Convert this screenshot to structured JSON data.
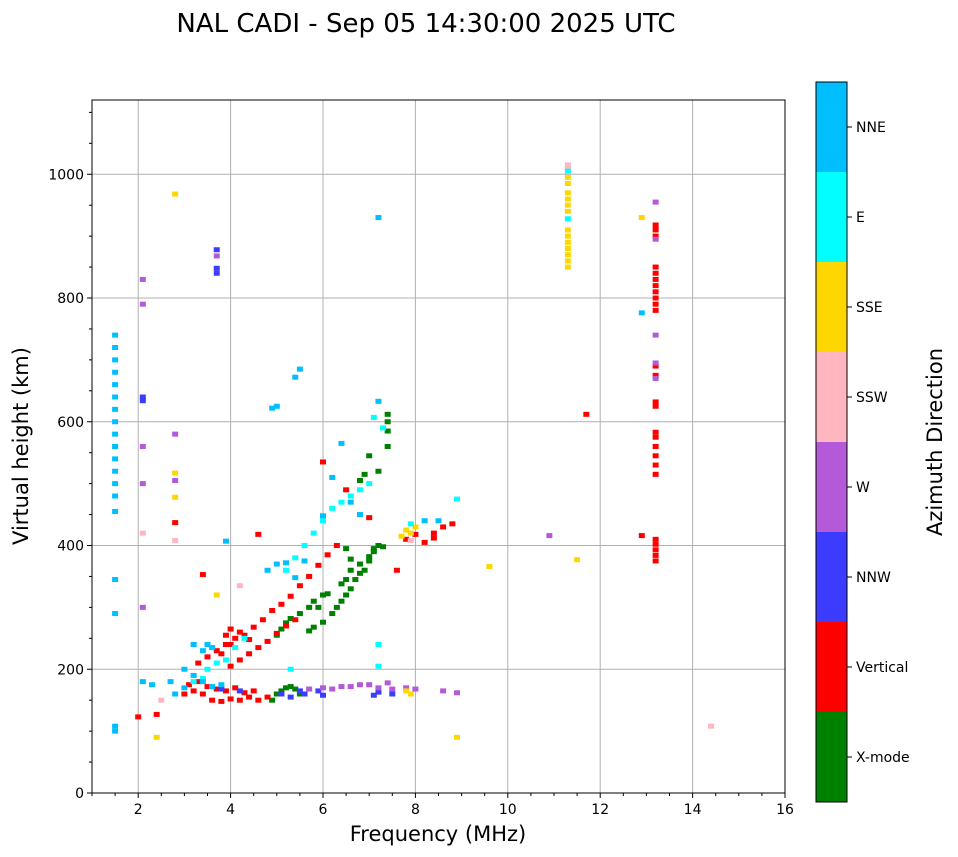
{
  "chart_data": {
    "type": "scatter",
    "title": "NAL CADI - Sep 05 14:30:00 2025 UTC",
    "xlabel": "Frequency (MHz)",
    "ylabel": "Virtual height (km)",
    "xlim": [
      1,
      16
    ],
    "ylim": [
      0,
      1120
    ],
    "xticks": [
      2,
      4,
      6,
      8,
      10,
      12,
      14,
      16
    ],
    "yticks": [
      0,
      200,
      400,
      600,
      800,
      1000
    ],
    "grid": true,
    "colorbar": {
      "label": "Azimuth Direction",
      "categories": [
        {
          "name": "X-mode",
          "color": "#008000"
        },
        {
          "name": "Vertical",
          "color": "#ff0000"
        },
        {
          "name": "NNW",
          "color": "#3c3cff"
        },
        {
          "name": "W",
          "color": "#b45ad8"
        },
        {
          "name": "SSW",
          "color": "#ffb6c1"
        },
        {
          "name": "SSE",
          "color": "#ffd700"
        },
        {
          "name": "E",
          "color": "#00ffff"
        },
        {
          "name": "NNE",
          "color": "#00bfff"
        }
      ]
    },
    "series": [
      {
        "name": "X-mode",
        "points": [
          [
            4.9,
            150
          ],
          [
            5.0,
            160
          ],
          [
            5.1,
            165
          ],
          [
            5.2,
            170
          ],
          [
            5.3,
            172
          ],
          [
            5.4,
            168
          ],
          [
            5.5,
            160
          ],
          [
            5.0,
            255
          ],
          [
            5.1,
            265
          ],
          [
            5.2,
            275
          ],
          [
            5.3,
            282
          ],
          [
            5.5,
            290
          ],
          [
            5.7,
            300
          ],
          [
            5.8,
            310
          ],
          [
            5.9,
            300
          ],
          [
            6.0,
            320
          ],
          [
            6.1,
            322
          ],
          [
            5.7,
            262
          ],
          [
            5.8,
            268
          ],
          [
            6.0,
            276
          ],
          [
            6.2,
            290
          ],
          [
            6.3,
            300
          ],
          [
            6.4,
            310
          ],
          [
            6.5,
            320
          ],
          [
            6.6,
            330
          ],
          [
            6.7,
            345
          ],
          [
            6.8,
            355
          ],
          [
            6.9,
            360
          ],
          [
            7.0,
            375
          ],
          [
            7.1,
            390
          ],
          [
            7.2,
            400
          ],
          [
            6.4,
            338
          ],
          [
            6.5,
            345
          ],
          [
            6.6,
            360
          ],
          [
            6.8,
            370
          ],
          [
            7.0,
            382
          ],
          [
            7.1,
            395
          ],
          [
            7.3,
            398
          ],
          [
            6.8,
            505
          ],
          [
            6.9,
            515
          ],
          [
            7.0,
            545
          ],
          [
            7.2,
            520
          ],
          [
            7.4,
            600
          ],
          [
            7.4,
            560
          ],
          [
            7.4,
            585
          ],
          [
            7.4,
            612
          ],
          [
            6.6,
            378
          ],
          [
            6.5,
            395
          ]
        ]
      },
      {
        "name": "Vertical",
        "points": [
          [
            3.0,
            160
          ],
          [
            3.2,
            165
          ],
          [
            3.4,
            160
          ],
          [
            3.6,
            150
          ],
          [
            3.8,
            148
          ],
          [
            4.0,
            152
          ],
          [
            4.2,
            150
          ],
          [
            4.4,
            155
          ],
          [
            4.6,
            150
          ],
          [
            4.8,
            155
          ],
          [
            3.1,
            175
          ],
          [
            3.3,
            180
          ],
          [
            3.5,
            172
          ],
          [
            3.7,
            168
          ],
          [
            3.9,
            165
          ],
          [
            4.1,
            170
          ],
          [
            4.3,
            162
          ],
          [
            4.5,
            165
          ],
          [
            3.3,
            210
          ],
          [
            3.5,
            220
          ],
          [
            3.7,
            230
          ],
          [
            3.9,
            240
          ],
          [
            4.1,
            250
          ],
          [
            4.3,
            255
          ],
          [
            4.5,
            268
          ],
          [
            4.7,
            280
          ],
          [
            4.9,
            295
          ],
          [
            5.1,
            305
          ],
          [
            5.3,
            318
          ],
          [
            5.5,
            335
          ],
          [
            5.7,
            350
          ],
          [
            5.9,
            368
          ],
          [
            6.1,
            385
          ],
          [
            6.3,
            400
          ],
          [
            4.0,
            205
          ],
          [
            4.2,
            215
          ],
          [
            4.4,
            225
          ],
          [
            4.6,
            235
          ],
          [
            4.8,
            245
          ],
          [
            5.0,
            258
          ],
          [
            5.2,
            270
          ],
          [
            5.4,
            280
          ],
          [
            3.8,
            225
          ],
          [
            4.0,
            240
          ],
          [
            4.2,
            260
          ],
          [
            4.4,
            248
          ],
          [
            4.0,
            265
          ],
          [
            3.9,
            255
          ],
          [
            7.8,
            410
          ],
          [
            8.0,
            418
          ],
          [
            8.2,
            405
          ],
          [
            8.4,
            412
          ],
          [
            8.6,
            430
          ],
          [
            8.8,
            435
          ],
          [
            8.4,
            420
          ],
          [
            4.6,
            418
          ],
          [
            6.0,
            535
          ],
          [
            6.5,
            490
          ],
          [
            7.0,
            445
          ],
          [
            3.4,
            353
          ],
          [
            7.6,
            360
          ],
          [
            11.7,
            612
          ],
          [
            2.8,
            437
          ],
          [
            2.4,
            127
          ],
          [
            2.0,
            123
          ],
          [
            12.9,
            416
          ],
          [
            13.2,
            375
          ],
          [
            13.2,
            384
          ],
          [
            13.2,
            393
          ],
          [
            13.2,
            402
          ],
          [
            13.2,
            410
          ],
          [
            13.2,
            515
          ],
          [
            13.2,
            530
          ],
          [
            13.2,
            545
          ],
          [
            13.2,
            560
          ],
          [
            13.2,
            575
          ],
          [
            13.2,
            583
          ],
          [
            13.2,
            625
          ],
          [
            13.2,
            632
          ],
          [
            13.2,
            675
          ],
          [
            13.2,
            690
          ],
          [
            13.2,
            780
          ],
          [
            13.2,
            790
          ],
          [
            13.2,
            800
          ],
          [
            13.2,
            810
          ],
          [
            13.2,
            820
          ],
          [
            13.2,
            830
          ],
          [
            13.2,
            840
          ],
          [
            13.2,
            850
          ],
          [
            13.2,
            900
          ],
          [
            13.2,
            910
          ],
          [
            13.2,
            918
          ]
        ]
      },
      {
        "name": "NNW",
        "points": [
          [
            5.1,
            160
          ],
          [
            5.3,
            155
          ],
          [
            5.5,
            165
          ],
          [
            5.6,
            160
          ],
          [
            5.9,
            165
          ],
          [
            6.0,
            158
          ],
          [
            7.1,
            158
          ],
          [
            7.2,
            163
          ],
          [
            7.5,
            160
          ],
          [
            3.8,
            168
          ],
          [
            4.2,
            165
          ],
          [
            3.7,
            840
          ],
          [
            3.7,
            848
          ],
          [
            3.7,
            878
          ],
          [
            2.1,
            640
          ],
          [
            2.1,
            634
          ]
        ]
      },
      {
        "name": "W",
        "points": [
          [
            6.0,
            170
          ],
          [
            6.2,
            168
          ],
          [
            6.4,
            172
          ],
          [
            6.6,
            172
          ],
          [
            6.8,
            175
          ],
          [
            7.0,
            175
          ],
          [
            7.2,
            170
          ],
          [
            7.5,
            168
          ],
          [
            7.8,
            170
          ],
          [
            8.0,
            168
          ],
          [
            8.6,
            165
          ],
          [
            8.9,
            162
          ],
          [
            7.4,
            178
          ],
          [
            5.7,
            168
          ],
          [
            10.9,
            416
          ],
          [
            13.2,
            955
          ],
          [
            13.2,
            895
          ],
          [
            13.2,
            740
          ],
          [
            13.2,
            695
          ],
          [
            13.2,
            670
          ],
          [
            2.1,
            300
          ],
          [
            2.1,
            500
          ],
          [
            2.1,
            560
          ],
          [
            2.1,
            790
          ],
          [
            2.1,
            830
          ],
          [
            2.8,
            505
          ],
          [
            2.8,
            580
          ],
          [
            3.7,
            868
          ]
        ]
      },
      {
        "name": "SSW",
        "points": [
          [
            11.3,
            1015
          ],
          [
            11.3,
            1010
          ],
          [
            14.4,
            108
          ],
          [
            7.9,
            408
          ],
          [
            4.2,
            335
          ],
          [
            2.8,
            408
          ],
          [
            2.1,
            420
          ],
          [
            2.5,
            150
          ]
        ]
      },
      {
        "name": "SSE",
        "points": [
          [
            11.3,
            850
          ],
          [
            11.3,
            860
          ],
          [
            11.3,
            870
          ],
          [
            11.3,
            880
          ],
          [
            11.3,
            890
          ],
          [
            11.3,
            900
          ],
          [
            11.3,
            910
          ],
          [
            11.3,
            940
          ],
          [
            11.3,
            950
          ],
          [
            11.3,
            960
          ],
          [
            11.3,
            970
          ],
          [
            11.3,
            985
          ],
          [
            11.3,
            995
          ],
          [
            12.9,
            930
          ],
          [
            7.8,
            425
          ],
          [
            7.9,
            420
          ],
          [
            8.0,
            430
          ],
          [
            7.7,
            415
          ],
          [
            9.6,
            366
          ],
          [
            11.5,
            377
          ],
          [
            8.9,
            90
          ],
          [
            2.8,
            968
          ],
          [
            2.8,
            517
          ],
          [
            2.8,
            478
          ],
          [
            3.7,
            320
          ],
          [
            2.4,
            90
          ],
          [
            7.9,
            160
          ],
          [
            7.8,
            165
          ]
        ]
      },
      {
        "name": "E",
        "points": [
          [
            3.5,
            200
          ],
          [
            3.7,
            210
          ],
          [
            3.9,
            215
          ],
          [
            4.1,
            235
          ],
          [
            4.3,
            250
          ],
          [
            5.2,
            360
          ],
          [
            5.4,
            380
          ],
          [
            5.6,
            400
          ],
          [
            5.8,
            420
          ],
          [
            6.0,
            440
          ],
          [
            6.2,
            460
          ],
          [
            6.4,
            470
          ],
          [
            6.6,
            480
          ],
          [
            6.8,
            490
          ],
          [
            7.0,
            500
          ],
          [
            5.3,
            200
          ],
          [
            7.2,
            240
          ],
          [
            7.2,
            205
          ],
          [
            11.3,
            928
          ],
          [
            11.3,
            1005
          ],
          [
            7.3,
            590
          ],
          [
            7.1,
            607
          ],
          [
            8.9,
            475
          ],
          [
            7.9,
            435
          ],
          [
            3.2,
            180
          ],
          [
            3.4,
            185
          ]
        ]
      },
      {
        "name": "NNE",
        "points": [
          [
            1.5,
            455
          ],
          [
            1.5,
            480
          ],
          [
            1.5,
            500
          ],
          [
            1.5,
            520
          ],
          [
            1.5,
            540
          ],
          [
            1.5,
            560
          ],
          [
            1.5,
            580
          ],
          [
            1.5,
            600
          ],
          [
            1.5,
            620
          ],
          [
            1.5,
            640
          ],
          [
            1.5,
            660
          ],
          [
            1.5,
            680
          ],
          [
            1.5,
            700
          ],
          [
            1.5,
            720
          ],
          [
            1.5,
            740
          ],
          [
            1.5,
            345
          ],
          [
            1.5,
            290
          ],
          [
            1.5,
            108
          ],
          [
            1.5,
            100
          ],
          [
            3.0,
            170
          ],
          [
            3.2,
            190
          ],
          [
            3.4,
            180
          ],
          [
            3.6,
            172
          ],
          [
            3.8,
            175
          ],
          [
            3.2,
            240
          ],
          [
            3.4,
            230
          ],
          [
            3.6,
            235
          ],
          [
            3.5,
            240
          ],
          [
            4.8,
            360
          ],
          [
            5.0,
            370
          ],
          [
            5.2,
            372
          ],
          [
            5.4,
            348
          ],
          [
            5.6,
            375
          ],
          [
            5.5,
            685
          ],
          [
            5.4,
            672
          ],
          [
            5.0,
            625
          ],
          [
            4.9,
            622
          ],
          [
            6.4,
            565
          ],
          [
            6.6,
            470
          ],
          [
            6.0,
            448
          ],
          [
            6.2,
            510
          ],
          [
            6.8,
            450
          ],
          [
            7.2,
            633
          ],
          [
            7.2,
            930
          ],
          [
            12.9,
            776
          ],
          [
            3.9,
            407
          ],
          [
            8.2,
            440
          ],
          [
            8.5,
            440
          ],
          [
            2.1,
            180
          ],
          [
            2.3,
            175
          ],
          [
            2.7,
            180
          ],
          [
            2.8,
            160
          ],
          [
            3.0,
            200
          ]
        ]
      }
    ]
  }
}
